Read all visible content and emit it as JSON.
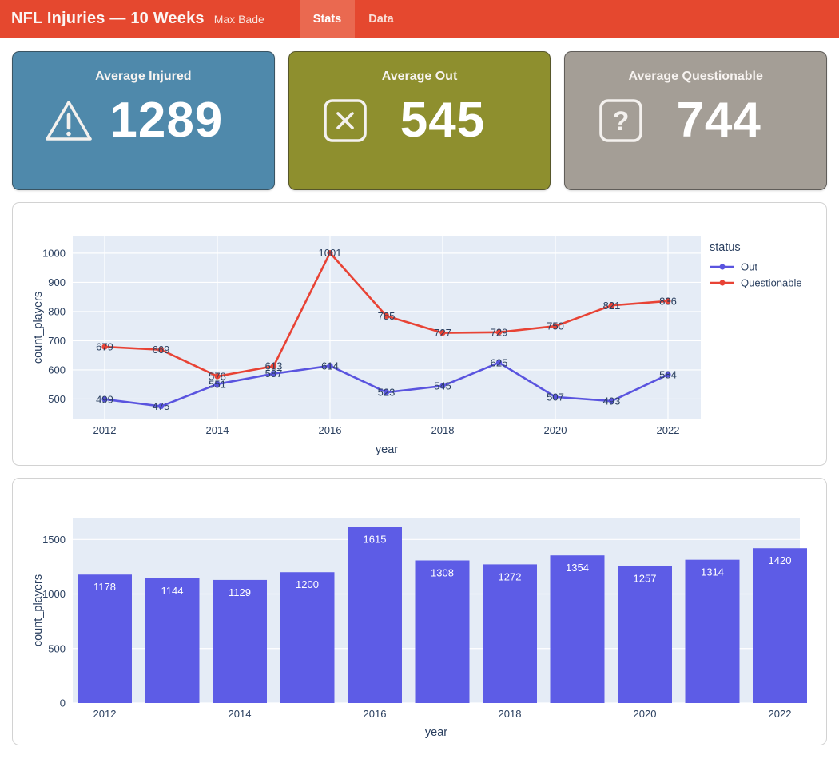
{
  "header": {
    "title": "NFL Injuries — 10 Weeks",
    "subtitle": "Max Bade",
    "tabs": [
      {
        "label": "Stats",
        "active": true
      },
      {
        "label": "Data",
        "active": false
      }
    ],
    "bg_color": "#e5482f",
    "active_tab_color": "#ea6950"
  },
  "stat_cards": [
    {
      "title": "Average Injured",
      "value": "1289",
      "icon": "warning-triangle-icon",
      "bg_color": "#4f89ab"
    },
    {
      "title": "Average Out",
      "value": "545",
      "icon": "x-square-icon",
      "bg_color": "#8e8f2e"
    },
    {
      "title": "Average Questionable",
      "value": "744",
      "icon": "question-square-icon",
      "bg_color": "#a49e96"
    }
  ],
  "chart_data": [
    {
      "type": "line",
      "x": [
        2012,
        2013,
        2014,
        2015,
        2016,
        2017,
        2018,
        2019,
        2020,
        2021,
        2022
      ],
      "series": [
        {
          "name": "Out",
          "color": "#5a54df",
          "values": [
            499,
            475,
            551,
            587,
            614,
            523,
            545,
            625,
            507,
            493,
            584
          ]
        },
        {
          "name": "Questionable",
          "color": "#e84335",
          "values": [
            679,
            669,
            578,
            613,
            1001,
            785,
            727,
            729,
            750,
            821,
            836
          ]
        }
      ],
      "xlabel": "year",
      "ylabel": "count_players",
      "xticks": [
        2012,
        2014,
        2016,
        2018,
        2020,
        2022
      ],
      "yticks": [
        500,
        600,
        700,
        800,
        900,
        1000
      ],
      "ylim": [
        430,
        1060
      ],
      "legend_title": "status",
      "legend_position": "right",
      "grid": true,
      "plot_bg": "#e5ecf6",
      "grid_color": "#ffffff"
    },
    {
      "type": "bar",
      "x": [
        2012,
        2013,
        2014,
        2015,
        2016,
        2017,
        2018,
        2019,
        2020,
        2021,
        2022
      ],
      "values": [
        1178,
        1144,
        1129,
        1200,
        1615,
        1308,
        1272,
        1354,
        1257,
        1314,
        1420
      ],
      "bar_color": "#5d5ce6",
      "xlabel": "year",
      "ylabel": "count_players",
      "xticks": [
        2012,
        2014,
        2016,
        2018,
        2020,
        2022
      ],
      "yticks": [
        0,
        500,
        1000,
        1500
      ],
      "ylim": [
        0,
        1700
      ],
      "grid": true,
      "plot_bg": "#e5ecf6",
      "grid_color": "#ffffff"
    }
  ]
}
